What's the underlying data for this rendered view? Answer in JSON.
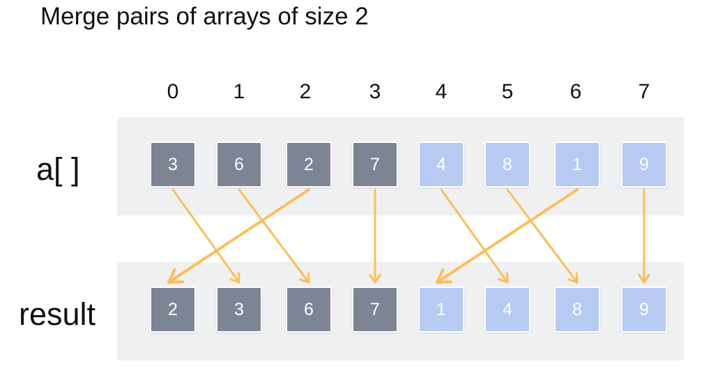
{
  "title": "Merge pairs of arrays of size 2",
  "indices": [
    "0",
    "1",
    "2",
    "3",
    "4",
    "5",
    "6",
    "7"
  ],
  "row_a": {
    "label": "a[ ]",
    "values": [
      "3",
      "6",
      "2",
      "7",
      "4",
      "8",
      "1",
      "9"
    ]
  },
  "row_result": {
    "label": "result",
    "values": [
      "2",
      "3",
      "6",
      "7",
      "1",
      "4",
      "8",
      "9"
    ]
  },
  "cell_groups": [
    "dark",
    "dark",
    "dark",
    "dark",
    "light",
    "light",
    "light",
    "light"
  ],
  "arrows": [
    {
      "from": 0,
      "to": 1
    },
    {
      "from": 1,
      "to": 2
    },
    {
      "from": 2,
      "to": 0
    },
    {
      "from": 3,
      "to": 3
    },
    {
      "from": 4,
      "to": 5
    },
    {
      "from": 5,
      "to": 6
    },
    {
      "from": 6,
      "to": 4
    },
    {
      "from": 7,
      "to": 7
    }
  ],
  "colors": {
    "dark_cell": "#7d8494",
    "light_cell": "#b7caf2",
    "arrow": "#fdbd57",
    "band": "#eff0f1"
  }
}
